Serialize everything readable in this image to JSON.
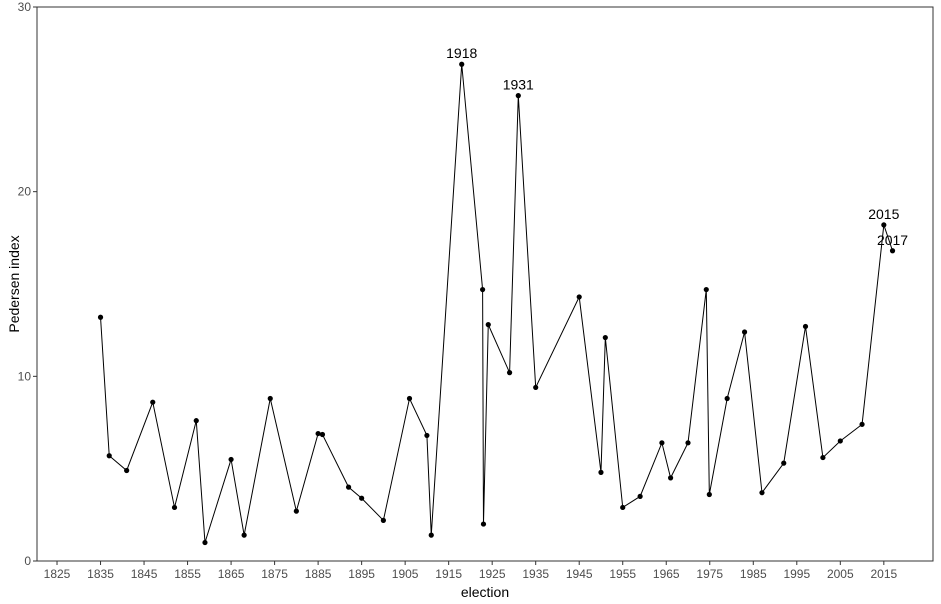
{
  "chart_data": {
    "type": "line",
    "x_label": "election",
    "y_label": "Pedersen index",
    "x": [
      1835,
      1837,
      1841,
      1847,
      1852,
      1857,
      1859,
      1865,
      1868,
      1874,
      1880,
      1885,
      1886,
      1892,
      1895,
      1900,
      1906,
      1910,
      1911,
      1918,
      1922.8,
      1923,
      1924.1,
      1929,
      1931,
      1935,
      1945,
      1950,
      1951,
      1955,
      1959,
      1964,
      1966,
      1970,
      1974.2,
      1974.9,
      1979,
      1983,
      1987,
      1992,
      1997,
      2001,
      2005,
      2010,
      2015,
      2017
    ],
    "series": [
      {
        "color": "#000000",
        "values": [
          13.2,
          5.7,
          4.9,
          8.6,
          2.9,
          7.6,
          1.0,
          5.5,
          1.4,
          8.8,
          2.7,
          6.9,
          6.85,
          4.0,
          3.4,
          2.2,
          8.8,
          6.8,
          1.4,
          26.9,
          14.7,
          2.0,
          12.8,
          10.2,
          25.2,
          9.4,
          14.3,
          4.8,
          12.1,
          2.9,
          3.5,
          6.4,
          4.5,
          6.4,
          14.7,
          3.6,
          8.8,
          12.4,
          3.7,
          5.3,
          12.7,
          5.6,
          6.5,
          7.4,
          18.2,
          16.8
        ]
      }
    ],
    "annotations": [
      {
        "label": "1918",
        "x": 1918,
        "y": 26.9
      },
      {
        "label": "1931",
        "x": 1931,
        "y": 25.2
      },
      {
        "label": "2015",
        "x": 2015,
        "y": 18.2
      },
      {
        "label": "2017",
        "x": 2017,
        "y": 16.8
      }
    ],
    "xlim": [
      1820.4,
      2026.3
    ],
    "ylim": [
      0,
      30
    ],
    "xticks": [
      1825,
      1835,
      1845,
      1855,
      1865,
      1875,
      1885,
      1895,
      1905,
      1915,
      1925,
      1935,
      1945,
      1955,
      1965,
      1975,
      1985,
      1995,
      2005,
      2015
    ],
    "yticks": [
      0,
      10,
      20,
      30
    ],
    "grid": false
  }
}
